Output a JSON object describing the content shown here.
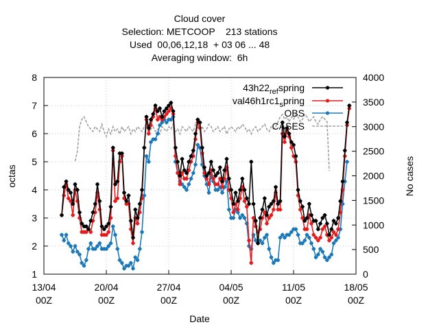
{
  "chart_data": {
    "type": "line",
    "title_lines": [
      "Cloud cover",
      "Selection: METCOOP    213 stations",
      "Used  00,06,12,18  + 03 06 ... 48",
      "Averaging window:  6h"
    ],
    "xlabel": "Date",
    "ylabel": "octas",
    "y2label": "No cases",
    "ylim": [
      1,
      8
    ],
    "y2lim": [
      0,
      4000
    ],
    "xlim_days": [
      0,
      35
    ],
    "x_ticks": [
      {
        "line1": "13/04",
        "line2": "00Z",
        "day": 0
      },
      {
        "line1": "20/04",
        "line2": "00Z",
        "day": 7
      },
      {
        "line1": "27/04",
        "line2": "00Z",
        "day": 14
      },
      {
        "line1": "04/05",
        "line2": "00Z",
        "day": 21
      },
      {
        "line1": "11/05",
        "line2": "00Z",
        "day": 28
      },
      {
        "line1": "18/05",
        "line2": "00Z",
        "day": 35
      }
    ],
    "y_ticks": [
      1,
      2,
      3,
      4,
      5,
      6,
      7,
      8
    ],
    "y2_ticks": [
      0,
      500,
      1000,
      1500,
      2000,
      2500,
      3000,
      3500,
      4000
    ],
    "grid": true,
    "legend_position": "top-right",
    "legend": [
      {
        "label": "43h22 ref spring",
        "main": "43h22",
        "sub": "ref",
        "rest": "spring"
      },
      {
        "label": "val46h1rc1 spring",
        "main": "val46h1rc1",
        "sub": "s",
        "rest": "pring"
      },
      {
        "label": "OBS",
        "main": "OBS"
      },
      {
        "label": "CASES",
        "main": "CASES"
      }
    ],
    "series": [
      {
        "name": "43h22 ref spring",
        "color": "#000000",
        "axis": "y",
        "x_start_day": 2.0,
        "step_days": 0.25,
        "values": [
          3.1,
          4.1,
          4.3,
          4.0,
          3.9,
          3.5,
          4.2,
          4.0,
          3.2,
          2.8,
          2.7,
          2.7,
          2.6,
          2.9,
          3.2,
          3.5,
          4.2,
          3.6,
          2.7,
          2.6,
          2.7,
          2.8,
          3.4,
          5.5,
          4.2,
          4.3,
          5.3,
          5.3,
          3.9,
          3.6,
          3.8,
          2.9,
          2.3,
          3.3,
          3.0,
          3.5,
          4.0,
          5.5,
          6.6,
          6.2,
          6.5,
          6.7,
          7.0,
          6.8,
          6.9,
          6.6,
          6.8,
          6.9,
          7.0,
          7.1,
          6.8,
          5.5,
          5.0,
          4.5,
          5.1,
          4.7,
          4.6,
          5.0,
          5.2,
          5.4,
          6.0,
          6.5,
          6.4,
          5.5,
          4.8,
          4.5,
          4.6,
          5.0,
          4.7,
          4.5,
          4.6,
          4.8,
          4.3,
          4.7,
          5.1,
          4.4,
          4.0,
          3.5,
          3.9,
          3.6,
          4.0,
          4.4,
          4.0,
          3.7,
          3.5,
          5.0,
          3.5,
          2.9,
          2.1,
          3.0,
          3.3,
          3.7,
          3.1,
          3.4,
          3.5,
          3.6,
          4.1,
          3.5,
          3.6,
          6.4,
          5.9,
          6.2,
          6.0,
          5.7,
          5.6,
          5.2,
          4.0,
          3.6,
          3.4,
          2.9,
          3.0,
          3.5,
          3.1,
          2.9,
          2.9,
          2.6,
          2.8,
          3.0,
          3.1,
          2.8,
          2.4,
          2.6,
          2.9,
          2.8,
          3.0,
          3.6,
          4.3,
          5.4,
          6.4,
          7.0
        ]
      },
      {
        "name": "val46h1rc1 spring",
        "color": "#e41a1c",
        "axis": "y",
        "x_start_day": 2.0,
        "step_days": 0.25,
        "values": [
          3.1,
          3.8,
          4.2,
          3.7,
          3.6,
          3.1,
          4.0,
          3.6,
          3.0,
          2.5,
          2.5,
          2.5,
          2.6,
          2.5,
          2.9,
          3.2,
          3.9,
          3.3,
          2.4,
          2.4,
          2.4,
          2.5,
          3.0,
          5.4,
          3.6,
          3.7,
          5.0,
          5.2,
          3.7,
          3.5,
          3.5,
          2.6,
          2.1,
          3.0,
          2.8,
          3.2,
          3.7,
          5.5,
          6.5,
          6.0,
          6.3,
          6.6,
          6.9,
          6.5,
          6.6,
          6.5,
          6.6,
          6.7,
          6.8,
          6.9,
          6.7,
          5.2,
          4.6,
          4.2,
          4.6,
          4.4,
          4.4,
          4.7,
          5.0,
          5.2,
          5.8,
          6.4,
          6.2,
          5.3,
          4.6,
          4.4,
          4.2,
          4.7,
          4.4,
          4.2,
          4.2,
          4.4,
          4.1,
          4.4,
          4.8,
          4.0,
          3.7,
          3.2,
          3.5,
          3.3,
          3.7,
          4.1,
          3.6,
          3.4,
          2.2,
          1.4,
          3.0,
          2.7,
          2.5,
          2.6,
          3.0,
          3.2,
          2.8,
          3.0,
          3.1,
          3.3,
          3.9,
          3.3,
          3.3,
          6.0,
          5.7,
          6.1,
          5.9,
          5.5,
          5.2,
          5.0,
          3.8,
          3.3,
          3.0,
          2.6,
          2.6,
          3.1,
          2.8,
          2.4,
          2.3,
          2.2,
          2.3,
          2.6,
          2.7,
          2.4,
          2.2,
          2.3,
          2.5,
          2.4,
          2.6,
          3.2,
          4.0,
          5.2,
          6.3,
          6.9
        ]
      },
      {
        "name": "OBS",
        "color": "#1b78b8",
        "axis": "y",
        "x_start_day": 2.0,
        "step_days": 0.25,
        "values": [
          2.4,
          2.2,
          2.4,
          2.1,
          2.0,
          1.8,
          2.0,
          1.8,
          1.7,
          1.4,
          1.3,
          1.5,
          1.9,
          2.1,
          1.9,
          1.9,
          2.0,
          2.1,
          1.9,
          1.9,
          1.9,
          2.0,
          2.1,
          2.7,
          2.4,
          1.9,
          1.5,
          1.4,
          1.2,
          1.3,
          1.3,
          1.4,
          1.2,
          1.6,
          1.5,
          1.9,
          2.5,
          3.8,
          5.2,
          5.0,
          5.7,
          5.8,
          5.8,
          6.0,
          6.3,
          6.4,
          6.5,
          6.4,
          6.5,
          6.5,
          6.6,
          5.0,
          4.6,
          4.3,
          4.2,
          4.1,
          4.0,
          4.2,
          4.4,
          4.6,
          4.9,
          5.6,
          5.5,
          4.9,
          4.5,
          4.2,
          3.9,
          4.5,
          4.3,
          4.0,
          4.0,
          4.1,
          3.9,
          4.1,
          4.3,
          3.3,
          3.0,
          3.0,
          3.3,
          3.2,
          3.0,
          3.1,
          3.0,
          2.8,
          2.0,
          1.9,
          2.4,
          2.2,
          2.1,
          2.2,
          2.1,
          2.3,
          2.4,
          1.9,
          1.6,
          1.4,
          1.5,
          1.5,
          2.3,
          2.4,
          2.3,
          2.4,
          2.4,
          2.5,
          2.6,
          2.6,
          2.4,
          2.1,
          2.1,
          2.2,
          2.4,
          2.3,
          2.1,
          1.9,
          1.6,
          1.7,
          1.9,
          1.8,
          1.6,
          1.5,
          1.6,
          1.7,
          2.1,
          2.2,
          2.3,
          2.6,
          3.5,
          4.3,
          5.0
        ]
      },
      {
        "name": "CASES",
        "color": "#a0a0a0",
        "axis": "y2",
        "x_start_day": 3.5,
        "step_days": 0.25,
        "values": [
          2300,
          2500,
          3000,
          3150,
          3200,
          3100,
          3000,
          2950,
          2900,
          3000,
          2950,
          2900,
          3050,
          2900,
          2800,
          2950,
          2850,
          3000,
          2900,
          2950,
          2850,
          3000,
          2900,
          2950,
          3000,
          2850,
          2950,
          2900,
          3000,
          2950,
          2900,
          3000,
          3050,
          2900,
          2950,
          3000,
          2900,
          2950,
          2850,
          3000,
          2950,
          2900,
          3000,
          2950,
          3050,
          2900,
          2950,
          2850,
          3000,
          2950,
          2900,
          3000,
          2950,
          2900,
          3050,
          3000,
          2950,
          3000,
          2900,
          2950,
          3050,
          3000,
          2900,
          2950,
          3000,
          2900,
          2950,
          3000,
          2850,
          2950,
          3000,
          2950,
          2900,
          3000,
          2950,
          3050,
          3000,
          2900,
          2950,
          2850,
          2950,
          3000,
          2900,
          2950,
          3000,
          3050,
          2950,
          2900,
          3000,
          2950,
          3000,
          3100,
          3200,
          3250,
          3150,
          3200,
          3100,
          3200,
          3150,
          3250,
          3200,
          3100,
          3150,
          3250,
          3200,
          3100,
          3150,
          3200,
          3100,
          3050,
          3150,
          3200,
          3150,
          3100,
          2100
        ]
      }
    ]
  }
}
